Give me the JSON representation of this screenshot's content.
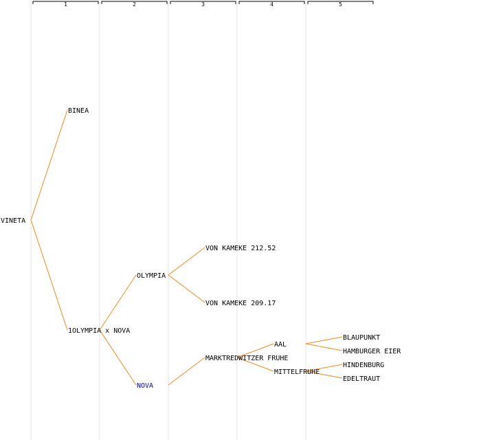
{
  "generations": [
    "1",
    "2",
    "3",
    "4",
    "5"
  ],
  "colors": {
    "edge": "#f08a1c",
    "text": "#000000",
    "highlight": "#0000c0",
    "grid": "#e6e6e6"
  },
  "nodes": [
    {
      "id": "vineta",
      "label": "VINETA",
      "generation": 0,
      "color": "#000000"
    },
    {
      "id": "binea",
      "label": "BINEA",
      "generation": 1,
      "parent": "vineta",
      "color": "#000000"
    },
    {
      "id": "olympia-nova",
      "label": "1OLYMPIA x NOVA",
      "generation": 1,
      "parent": "vineta",
      "color": "#000000"
    },
    {
      "id": "olympia",
      "label": "OLYMPIA",
      "generation": 2,
      "parent": "olympia-nova",
      "color": "#000000"
    },
    {
      "id": "nova",
      "label": "NOVA",
      "generation": 2,
      "parent": "olympia-nova",
      "color": "#0000c0"
    },
    {
      "id": "vk21252",
      "label": "VON KAMEKE 212.52",
      "generation": 3,
      "parent": "olympia",
      "color": "#000000"
    },
    {
      "id": "vk20917",
      "label": "VON KAMEKE 209.17",
      "generation": 3,
      "parent": "olympia",
      "color": "#000000"
    },
    {
      "id": "mf",
      "label": "MARKTREDWITZER FRUHE",
      "generation": 3,
      "parent": "nova",
      "color": "#000000"
    },
    {
      "id": "aal",
      "label": "AAL",
      "generation": 4,
      "parent": "mf",
      "color": "#000000"
    },
    {
      "id": "mittelfruhe",
      "label": "MITTELFRUHE",
      "generation": 4,
      "parent": "mf",
      "color": "#000000"
    },
    {
      "id": "blaupunkt",
      "label": "BLAUPUNKT",
      "generation": 5,
      "parent": "aal",
      "color": "#000000"
    },
    {
      "id": "hamburger",
      "label": "HAMBURGER EIER",
      "generation": 5,
      "parent": "aal",
      "color": "#000000"
    },
    {
      "id": "hindenburg",
      "label": "HINDENBURG",
      "generation": 5,
      "parent": "mittelfruhe",
      "color": "#000000"
    },
    {
      "id": "edeltraut",
      "label": "EDELTRAUT",
      "generation": 5,
      "parent": "mittelfruhe",
      "color": "#000000"
    }
  ]
}
